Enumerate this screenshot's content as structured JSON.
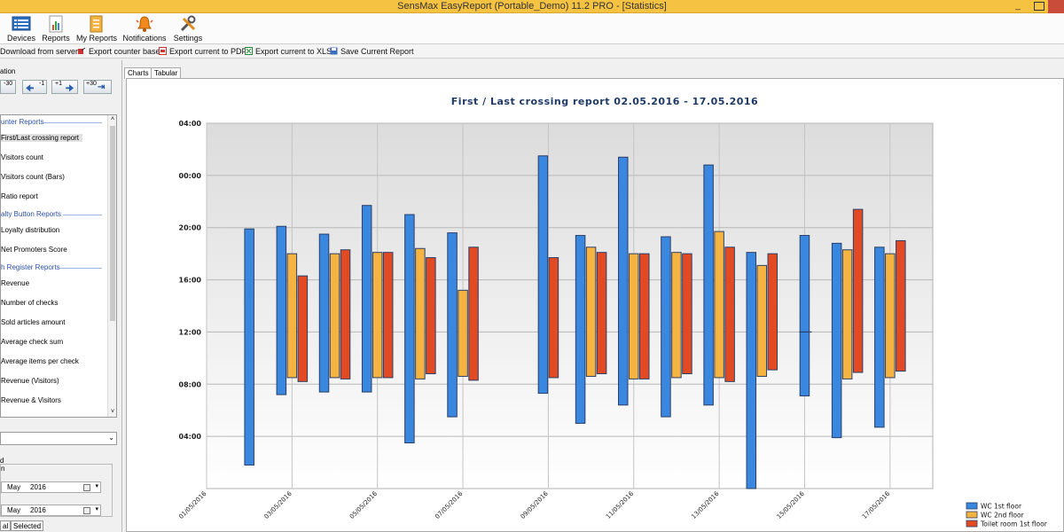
{
  "window": {
    "title": "SensMax EasyReport (Portable_Demo) 11.2 PRO - [Statistics]"
  },
  "ribbon": [
    {
      "label": "Devices",
      "icon": "devices-icon"
    },
    {
      "label": "Reports",
      "icon": "reports-icon"
    },
    {
      "label": "My Reports",
      "icon": "my-reports-icon"
    },
    {
      "label": "Notifications",
      "icon": "bell-icon"
    },
    {
      "label": "Settings",
      "icon": "wrench-icon"
    }
  ],
  "toolbar": [
    {
      "label": "Download from server",
      "icon": "download-icon"
    },
    {
      "label": "Export counter base",
      "icon": "export-icon"
    },
    {
      "label": "Export current to PDF",
      "icon": "pdf-icon"
    },
    {
      "label": "Export current to XLS",
      "icon": "xls-icon"
    },
    {
      "label": "Save Current Report",
      "icon": "save-icon"
    }
  ],
  "navigation": {
    "label": "ation",
    "buttons": [
      "-30",
      "-1",
      "+1",
      "+30"
    ]
  },
  "report_list": {
    "sections": [
      {
        "title": "unter Reports",
        "items": [
          "First/Last crossing report",
          "Visitors count",
          "Visitors count (Bars)",
          "Ratio report"
        ]
      },
      {
        "title": "alty Button Reports",
        "items": [
          "Loyalty distribution",
          "Net Promoters Score"
        ]
      },
      {
        "title": "h Register Reports",
        "items": [
          "Revenue",
          "Number of checks",
          "Sold articles amount",
          "Average check sum",
          "Average items per check",
          "Revenue (Visitors)",
          "Revenue & Visitors"
        ]
      }
    ],
    "selected": "First/Last crossing report"
  },
  "period": {
    "group_label": "d",
    "sub_label": "n",
    "from": {
      "month": "May",
      "year": "2016"
    },
    "to": {
      "month": "May",
      "year": "2016"
    }
  },
  "bottom_tabs": [
    "al",
    "Selected"
  ],
  "tabs": [
    "Charts",
    "Tabular"
  ],
  "colors": {
    "series": [
      "#3a87e0",
      "#f5b342",
      "#e24a24"
    ],
    "plot_bg_top": "#dcdcdc",
    "plot_bg_bottom": "#ffffff"
  },
  "chart_data": {
    "type": "bar",
    "subtype": "floating-range",
    "title": "First / Last crossing report 02.05.2016 - 17.05.2016",
    "xlabel": "",
    "ylabel": "",
    "y_unit": "hours (time of day, axis wraps past midnight)",
    "ylim": [
      0,
      28
    ],
    "y_ticks": [
      4,
      8,
      12,
      16,
      20,
      24,
      28
    ],
    "y_tick_labels": [
      "04:00",
      "08:00",
      "12:00",
      "16:00",
      "20:00",
      "00:00",
      "04:00"
    ],
    "x_tick_labels": [
      "01/05/2016",
      "03/05/2016",
      "05/05/2016",
      "07/05/2016",
      "09/05/2016",
      "11/05/2016",
      "13/05/2016",
      "15/05/2016",
      "17/05/2016"
    ],
    "categories": [
      "02/05/2016",
      "03/05/2016",
      "04/05/2016",
      "05/05/2016",
      "06/05/2016",
      "07/05/2016",
      "08/05/2016",
      "09/05/2016",
      "10/05/2016",
      "11/05/2016",
      "12/05/2016",
      "13/05/2016",
      "14/05/2016",
      "15/05/2016",
      "16/05/2016",
      "17/05/2016"
    ],
    "legend_position": "bottom-right",
    "grid": true,
    "series": [
      {
        "name": "WC 1st floor",
        "ranges": [
          [
            1.8,
            19.9
          ],
          [
            7.2,
            20.1
          ],
          [
            7.4,
            19.5
          ],
          [
            7.4,
            21.7
          ],
          [
            3.5,
            21.0
          ],
          [
            5.5,
            19.6
          ],
          [
            null,
            null
          ],
          [
            7.3,
            25.5
          ],
          [
            5.0,
            19.4
          ],
          [
            6.4,
            25.4
          ],
          [
            5.5,
            19.3
          ],
          [
            6.4,
            24.8
          ],
          [
            -0.4,
            18.1
          ],
          [
            7.1,
            19.4
          ],
          [
            3.9,
            18.8
          ],
          [
            4.7,
            18.5
          ]
        ]
      },
      {
        "name": "WC 2nd floor",
        "ranges": [
          [
            null,
            null
          ],
          [
            8.5,
            18.0
          ],
          [
            8.5,
            18.0
          ],
          [
            8.5,
            18.1
          ],
          [
            8.4,
            18.4
          ],
          [
            8.6,
            15.2
          ],
          [
            null,
            null
          ],
          [
            null,
            null
          ],
          [
            8.6,
            18.5
          ],
          [
            8.4,
            18.0
          ],
          [
            8.5,
            18.1
          ],
          [
            8.5,
            19.7
          ],
          [
            8.6,
            17.1
          ],
          [
            null,
            null
          ],
          [
            8.4,
            18.3
          ],
          [
            8.5,
            18.0
          ]
        ]
      },
      {
        "name": "Toilet room 1st floor",
        "ranges": [
          [
            null,
            null
          ],
          [
            8.2,
            16.3
          ],
          [
            8.4,
            18.3
          ],
          [
            8.5,
            18.1
          ],
          [
            8.8,
            17.7
          ],
          [
            8.3,
            18.5
          ],
          [
            null,
            null
          ],
          [
            8.5,
            17.7
          ],
          [
            8.8,
            18.1
          ],
          [
            8.4,
            18.0
          ],
          [
            8.8,
            18.0
          ],
          [
            8.2,
            18.5
          ],
          [
            9.1,
            18.0
          ],
          [
            null,
            null
          ],
          [
            8.9,
            21.4
          ],
          [
            9.0,
            19.0
          ]
        ]
      }
    ],
    "annotations": [
      {
        "text": "",
        "at": "15/05/2016",
        "value": 12.0,
        "kind": "short-line"
      }
    ]
  }
}
